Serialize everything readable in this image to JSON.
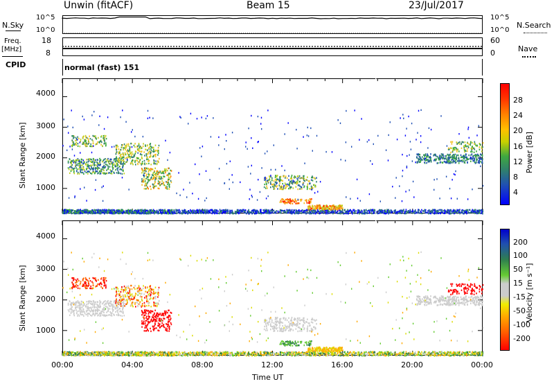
{
  "header": {
    "station": "Unwin (fitACF)",
    "beam": "Beam 15",
    "date": "23/Jul/2017"
  },
  "side_labels": {
    "nsky": "N.Sky",
    "nsearch": "N.Search",
    "freq": "Freq.",
    "mhz": "[MHz]",
    "nave": "Nave",
    "cpid": "CPID"
  },
  "noise_axis": {
    "top": "10^5",
    "bottom": "10^0"
  },
  "freq_axis": {
    "top": "18",
    "bottom": "8"
  },
  "nave_axis": {
    "top": "60",
    "bottom": "0"
  },
  "cpid_text": "normal (fast) 151",
  "colors": {
    "power": [
      "#0000ff",
      "#1f4fb5",
      "#2f7f6f",
      "#38a83a",
      "#c0d020",
      "#f0c020",
      "#ff8000",
      "#ff2000"
    ],
    "velocity": [
      "#ff0000",
      "#ff6600",
      "#ffaa00",
      "#dddd00",
      "#cccccc",
      "#66cc33",
      "#2f7f4f",
      "#1a3cc8"
    ]
  },
  "chart_data": [
    {
      "type": "heatmap",
      "name": "power",
      "ylabel": "Slant Range [km]",
      "ylim": [
        180,
        4600
      ],
      "yticks": [
        "4000",
        "3000",
        "2000",
        "1000"
      ],
      "xlim": [
        0,
        24
      ],
      "colorbar_label": "Power [dB]",
      "colorbar_ticks": [
        "28",
        "24",
        "20",
        "16",
        "12",
        "8",
        "4"
      ]
    },
    {
      "type": "heatmap",
      "name": "velocity",
      "ylabel": "Slant Range [km]",
      "ylim": [
        180,
        4600
      ],
      "yticks": [
        "4000",
        "3000",
        "2000",
        "1000"
      ],
      "xlim": [
        0,
        24
      ],
      "xticks": [
        "00:00",
        "04:00",
        "08:00",
        "12:00",
        "16:00",
        "20:00",
        "00:00"
      ],
      "xlabel": "Time UT",
      "colorbar_label": "Velocity [m s⁻¹]",
      "colorbar_ticks": [
        "200",
        "100",
        "50",
        "15",
        "-15",
        "-50",
        "-100",
        "-200"
      ]
    }
  ]
}
